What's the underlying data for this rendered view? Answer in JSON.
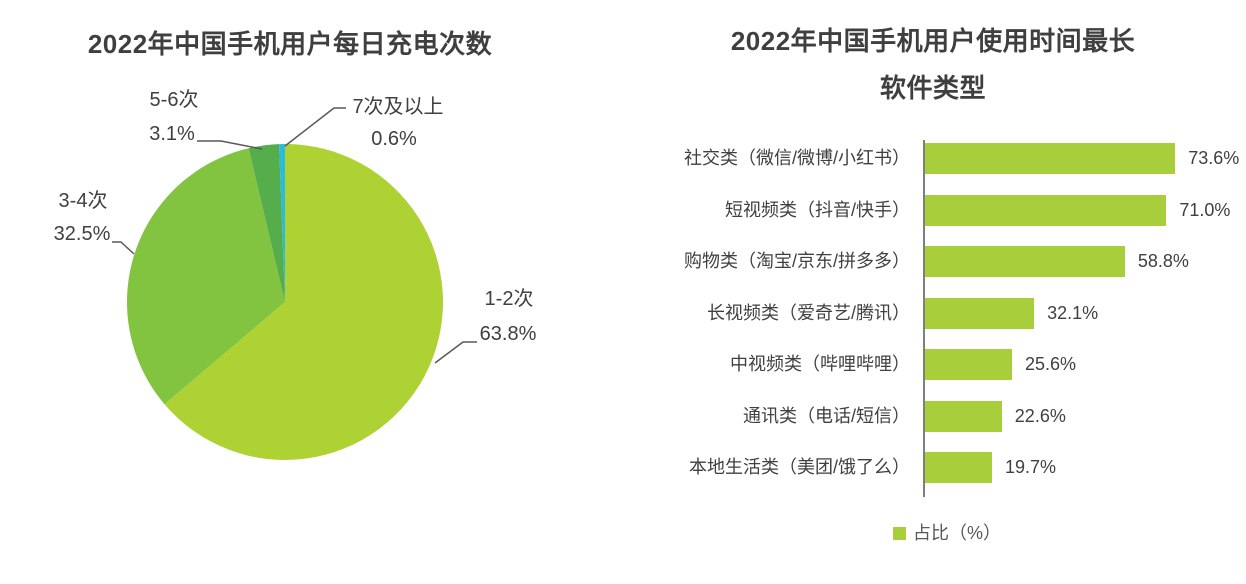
{
  "page": {
    "background": "#ffffff"
  },
  "chart_data": [
    {
      "type": "pie",
      "title": "2022年中国手机用户每日充电次数",
      "slices": [
        {
          "label": "1-2次",
          "value": 63.8,
          "display": "63.8%",
          "color": "#aed233"
        },
        {
          "label": "3-4次",
          "value": 32.5,
          "display": "32.5%",
          "color": "#82c340"
        },
        {
          "label": "5-6次",
          "value": 3.1,
          "display": "3.1%",
          "color": "#55ad4b"
        },
        {
          "label": "7次及以上",
          "value": 0.6,
          "display": "0.6%",
          "color": "#2bbbdd"
        }
      ],
      "start_angle_deg": 0,
      "direction": "clockwise",
      "label_color": "#404040",
      "leader_line_color": "#595959",
      "legend": "none"
    },
    {
      "type": "bar",
      "orientation": "horizontal",
      "title_lines": [
        "2022年中国手机用户使用时间最长",
        "软件类型"
      ],
      "categories": [
        "社交类（微信/微博/小红书）",
        "短视频类（抖音/快手）",
        "购物类（淘宝/京东/拼多多）",
        "长视频类（爱奇艺/腾讯）",
        "中视频类（哔哩哔哩）",
        "通讯类（电话/短信）",
        "本地生活类（美团/饿了么）"
      ],
      "values": [
        73.6,
        71.0,
        58.8,
        32.1,
        25.6,
        22.6,
        19.7
      ],
      "value_labels": [
        "73.6%",
        "71.0%",
        "58.8%",
        "32.1%",
        "25.6%",
        "22.6%",
        "19.7%"
      ],
      "xlim": [
        0,
        100
      ],
      "grid": "off",
      "bar_color": "#a9ce3b",
      "axis_color": "#7f7f7f",
      "legend": {
        "label": "占比（%）",
        "swatch_color": "#a9ce3b",
        "position": "bottom"
      }
    }
  ]
}
